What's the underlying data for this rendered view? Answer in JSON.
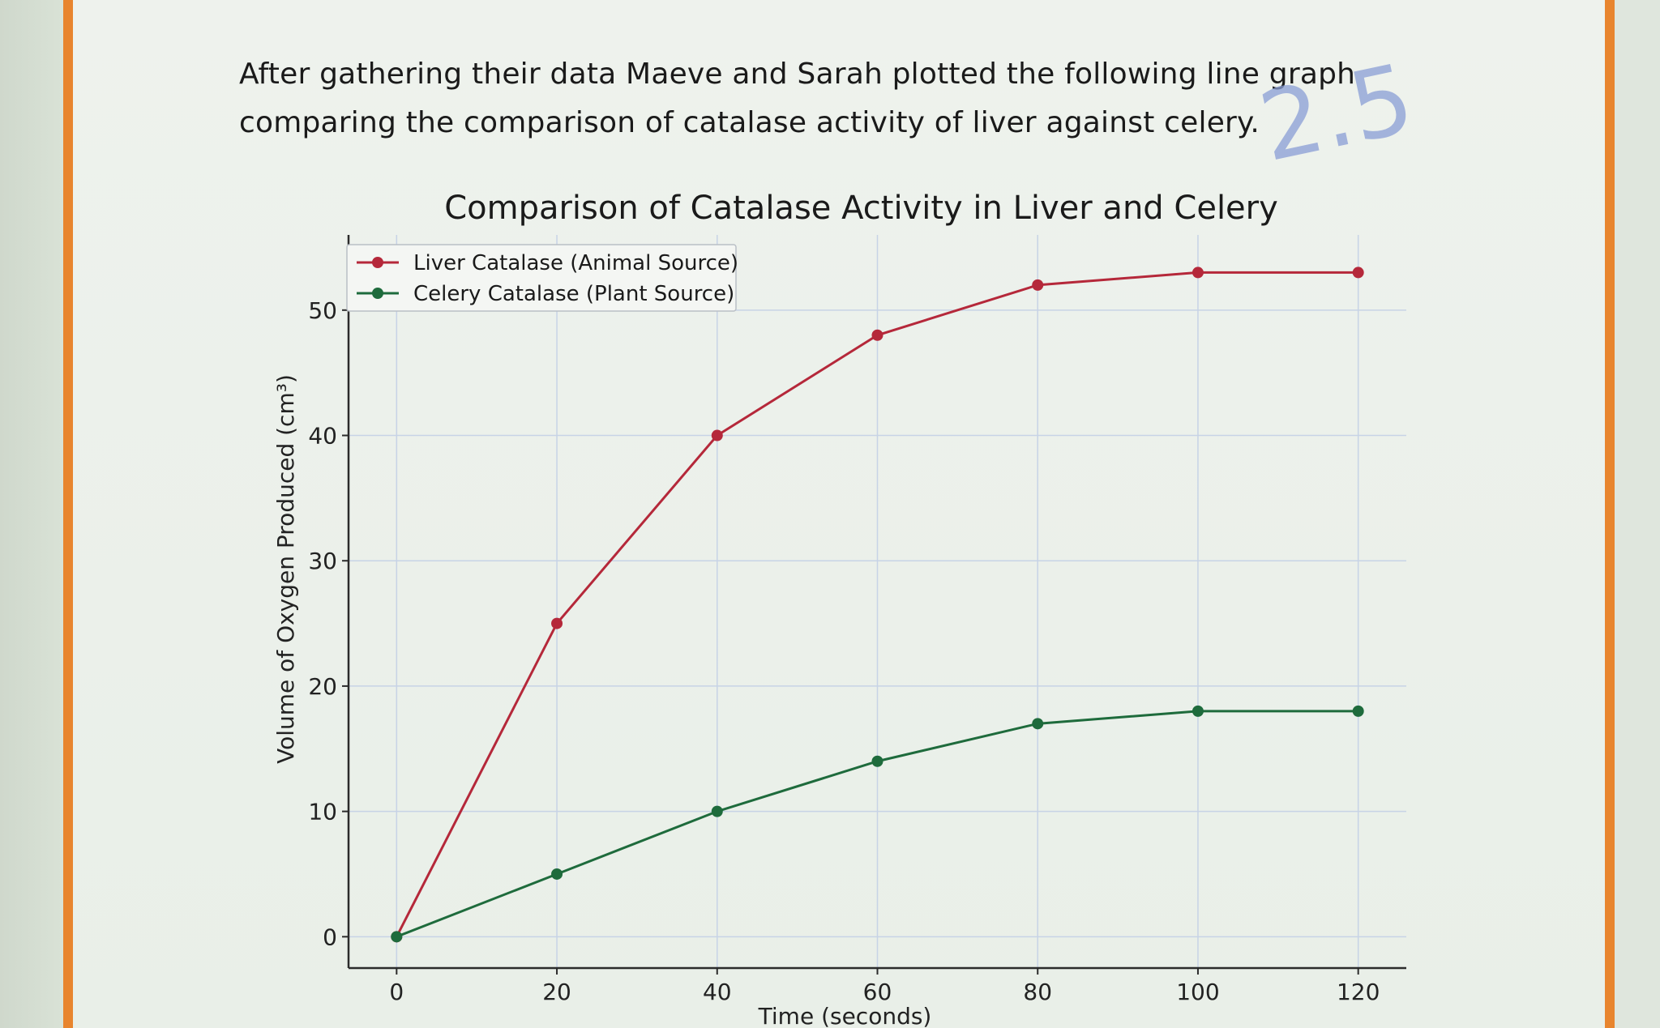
{
  "intro": {
    "line1": "After gathering their data Maeve and Sarah plotted the following line graph",
    "line2": "comparing the comparison of catalase activity of liver against celery."
  },
  "annotation": "2.5",
  "colors": {
    "liver": "#b5283a",
    "celery": "#1e6b3c",
    "frame": "#e8852e"
  },
  "chart_data": {
    "type": "line",
    "title": "Comparison of Catalase Activity in Liver and Celery",
    "xlabel": "Time (seconds)",
    "ylabel": "Volume of Oxygen Produced (cm³)",
    "x": [
      0,
      20,
      40,
      60,
      80,
      100,
      120
    ],
    "xticks": [
      0,
      20,
      40,
      60,
      80,
      100,
      120
    ],
    "yticks": [
      0,
      10,
      20,
      30,
      40,
      50
    ],
    "xlim": [
      -6,
      126
    ],
    "ylim": [
      -2.5,
      56
    ],
    "grid": true,
    "legend_position": "top-left",
    "series": [
      {
        "name": "Liver Catalase (Animal Source)",
        "values": [
          0,
          25,
          40,
          48,
          52,
          53,
          53
        ],
        "color": "#b5283a"
      },
      {
        "name": "Celery Catalase (Plant Source)",
        "values": [
          0,
          5,
          10,
          14,
          17,
          18,
          18
        ],
        "color": "#1e6b3c"
      }
    ]
  }
}
